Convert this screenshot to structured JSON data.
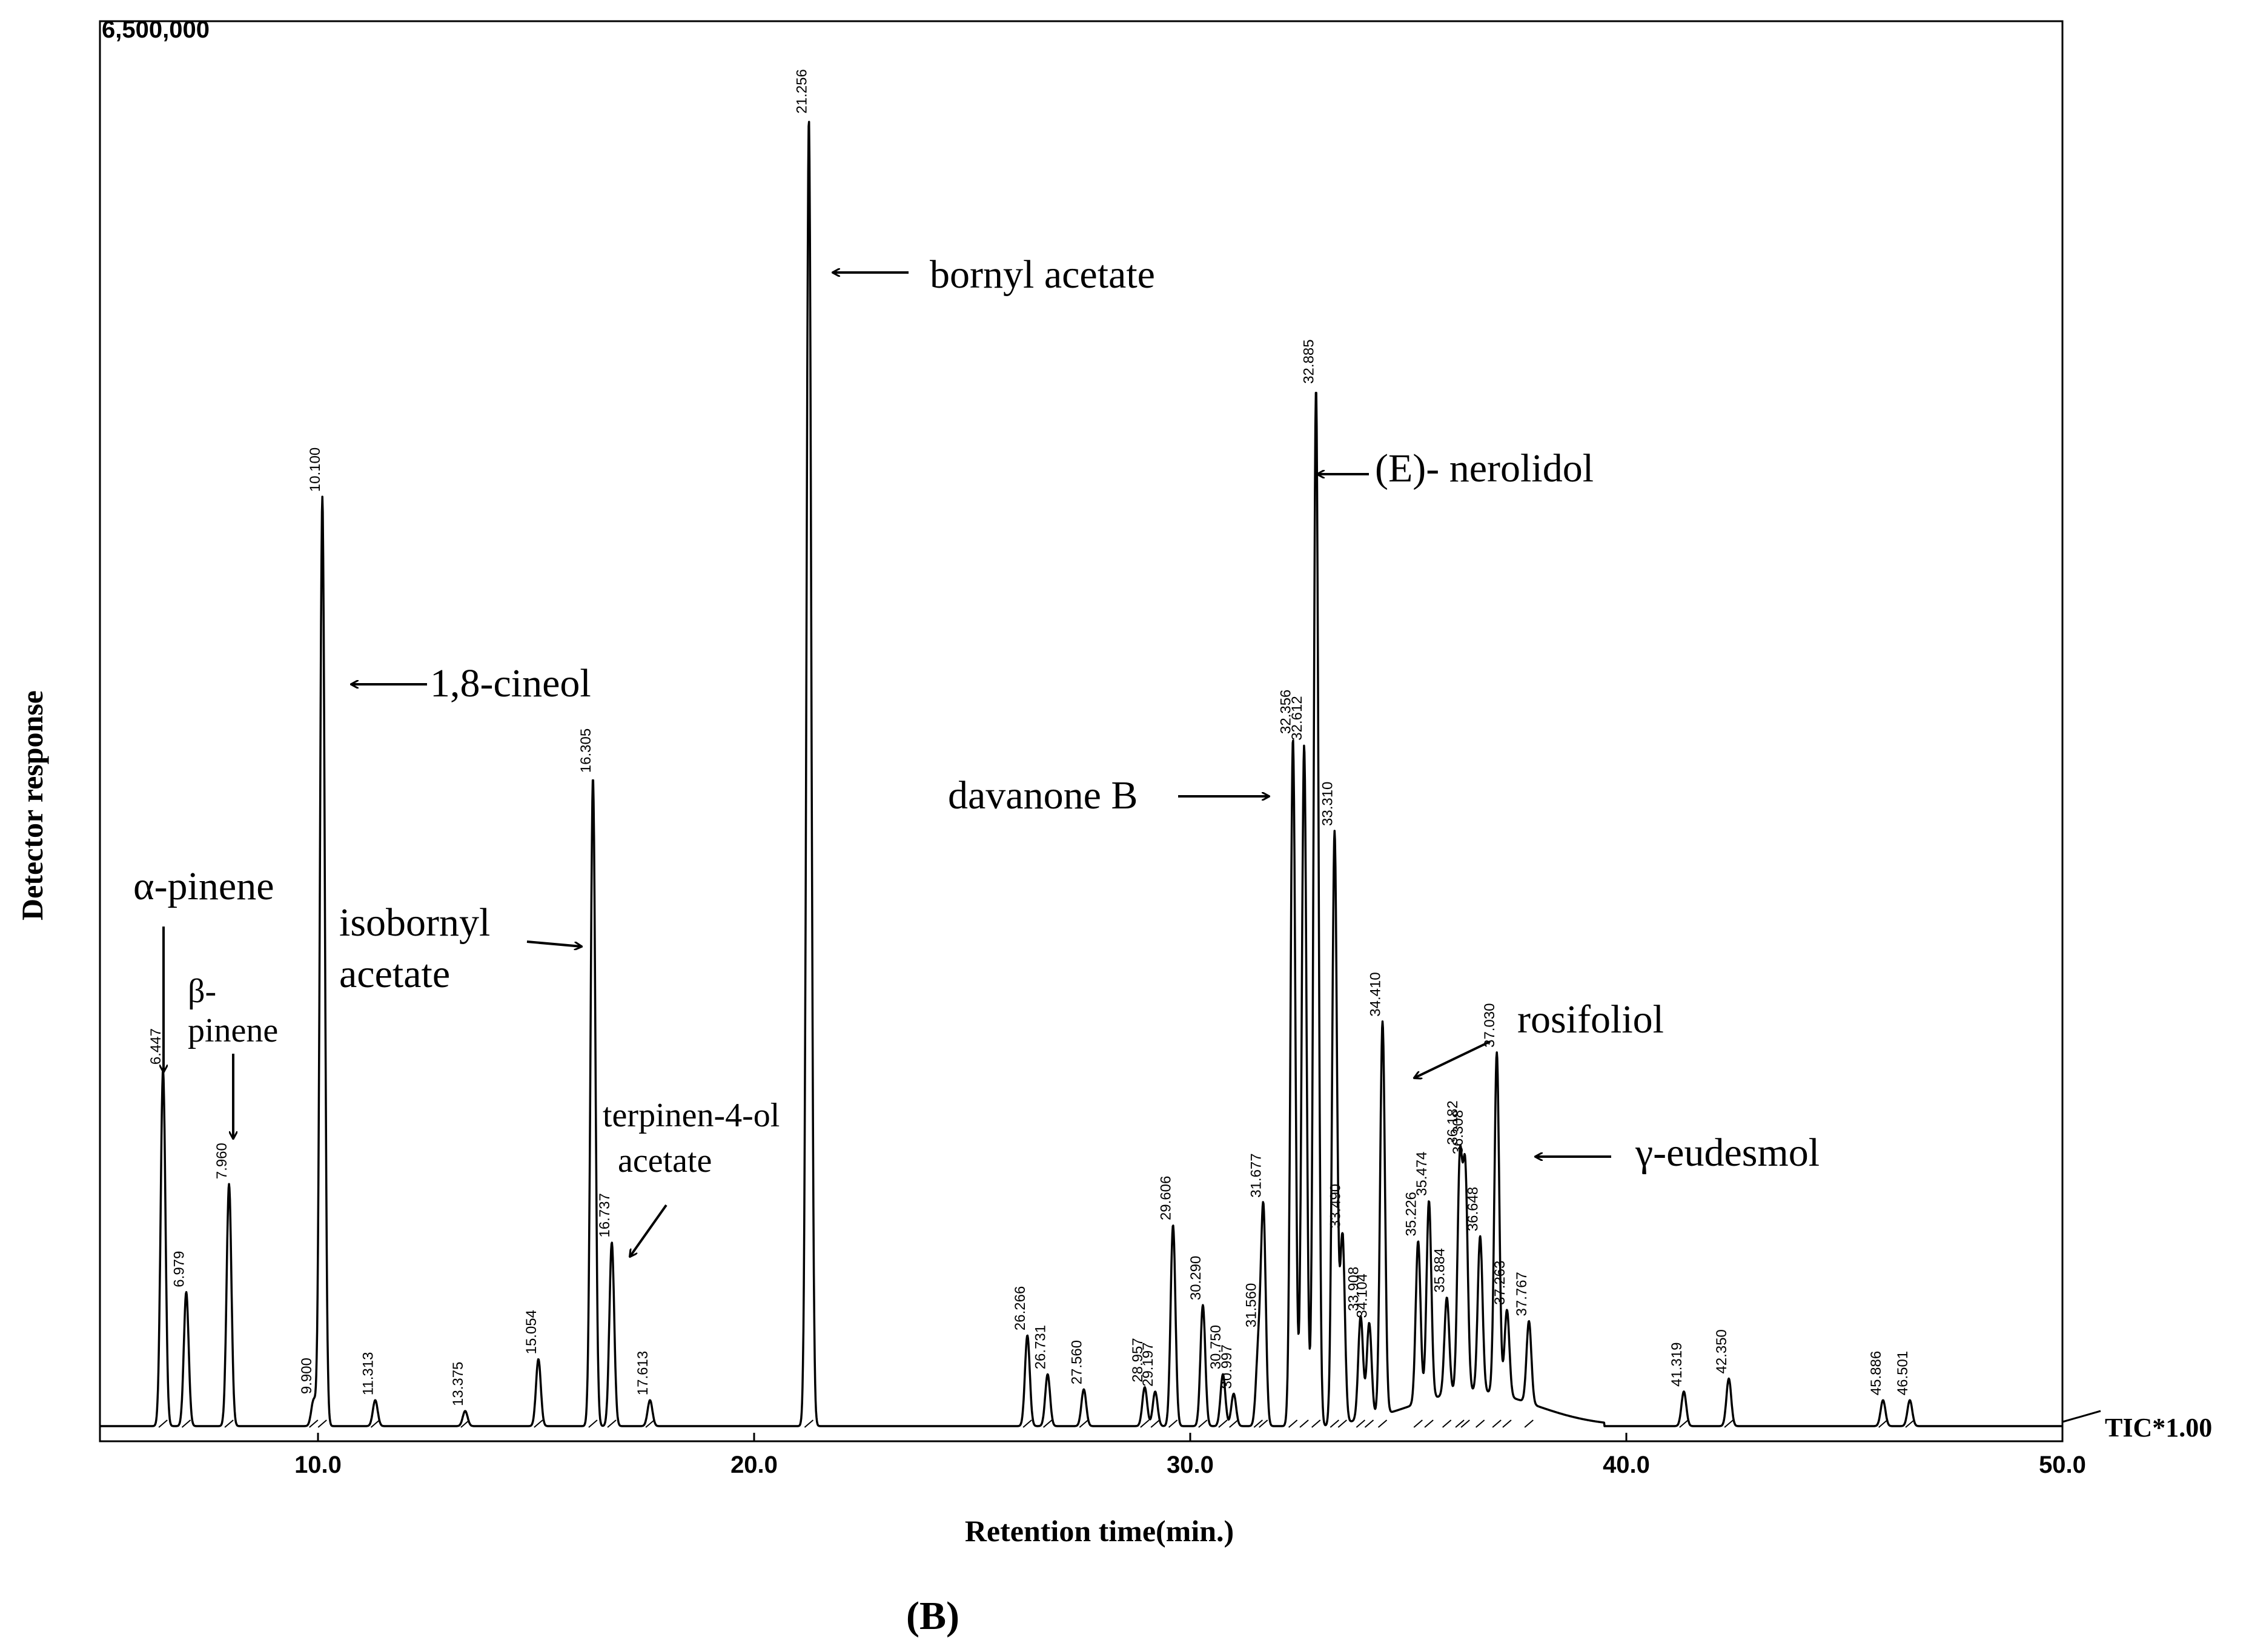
{
  "chart_data": {
    "type": "line",
    "title": "",
    "xlabel": "Retention time(min.)",
    "ylabel": "Detector response",
    "ymax_label": "6,500,000",
    "trace_label": "TIC*1.00",
    "panel_label": "(B)",
    "xlim": [
      5.0,
      50.0
    ],
    "ylim": [
      0,
      6500000
    ],
    "xticks": [
      "10.0",
      "20.0",
      "30.0",
      "40.0",
      "50.0"
    ],
    "grid": false,
    "peaks": [
      {
        "label": "6.447",
        "x": 6.447,
        "y": 1650000
      },
      {
        "label": "6.979",
        "x": 6.979,
        "y": 620000
      },
      {
        "label": "7.960",
        "x": 7.96,
        "y": 1120000
      },
      {
        "label": "9.900",
        "x": 9.9,
        "y": 120000
      },
      {
        "label": "10.100",
        "x": 10.1,
        "y": 4300000
      },
      {
        "label": "11.313",
        "x": 11.313,
        "y": 120000
      },
      {
        "label": "13.375",
        "x": 13.375,
        "y": 70000
      },
      {
        "label": "15.054",
        "x": 15.054,
        "y": 310000
      },
      {
        "label": "16.305",
        "x": 16.305,
        "y": 3000000
      },
      {
        "label": "16.737",
        "x": 16.737,
        "y": 850000
      },
      {
        "label": "17.613",
        "x": 17.613,
        "y": 120000
      },
      {
        "label": "21.256",
        "x": 21.256,
        "y": 6050000
      },
      {
        "label": "26.266",
        "x": 26.266,
        "y": 420000
      },
      {
        "label": "26.731",
        "x": 26.731,
        "y": 240000
      },
      {
        "label": "27.560",
        "x": 27.56,
        "y": 170000
      },
      {
        "label": "28.957",
        "x": 28.957,
        "y": 180000
      },
      {
        "label": "29.197",
        "x": 29.197,
        "y": 160000
      },
      {
        "label": "29.606",
        "x": 29.606,
        "y": 930000
      },
      {
        "label": "30.290",
        "x": 30.29,
        "y": 560000
      },
      {
        "label": "30.750",
        "x": 30.75,
        "y": 240000
      },
      {
        "label": "30.997",
        "x": 30.997,
        "y": 150000
      },
      {
        "label": "31.560",
        "x": 31.56,
        "y": 330000
      },
      {
        "label": "31.677",
        "x": 31.677,
        "y": 1000000
      },
      {
        "label": "32.356",
        "x": 32.356,
        "y": 3180000
      },
      {
        "label": "32.612",
        "x": 32.612,
        "y": 3150000
      },
      {
        "label": "32.885",
        "x": 32.885,
        "y": 4800000
      },
      {
        "label": "33.310",
        "x": 33.31,
        "y": 2750000
      },
      {
        "label": "33.490",
        "x": 33.49,
        "y": 880000
      },
      {
        "label": "33.908",
        "x": 33.908,
        "y": 480000
      },
      {
        "label": "34.104",
        "x": 34.104,
        "y": 440000
      },
      {
        "label": "34.410",
        "x": 34.41,
        "y": 1820000
      },
      {
        "label": "35.226",
        "x": 35.226,
        "y": 750000
      },
      {
        "label": "35.474",
        "x": 35.474,
        "y": 920000
      },
      {
        "label": "35.884",
        "x": 35.884,
        "y": 450000
      },
      {
        "label": "36.182",
        "x": 36.182,
        "y": 1050000
      },
      {
        "label": "36.308",
        "x": 36.308,
        "y": 1000000
      },
      {
        "label": "36.648",
        "x": 36.648,
        "y": 720000
      },
      {
        "label": "37.030",
        "x": 37.03,
        "y": 1580000
      },
      {
        "label": "37.263",
        "x": 37.263,
        "y": 400000
      },
      {
        "label": "37.767",
        "x": 37.767,
        "y": 380000
      },
      {
        "label": "41.319",
        "x": 41.319,
        "y": 160000
      },
      {
        "label": "42.350",
        "x": 42.35,
        "y": 220000
      },
      {
        "label": "45.886",
        "x": 45.886,
        "y": 120000
      },
      {
        "label": "46.501",
        "x": 46.501,
        "y": 120000
      }
    ],
    "annotations": [
      {
        "text": "α-pinene"
      },
      {
        "text": "β-"
      },
      {
        "text": "pinene"
      },
      {
        "text": "1,8-cineol"
      },
      {
        "text": "isobornyl"
      },
      {
        "text": "acetate"
      },
      {
        "text": "terpinen-4-ol"
      },
      {
        "text": "acetate"
      },
      {
        "text": "bornyl acetate"
      },
      {
        "text": "(E)- nerolidol"
      },
      {
        "text": "davanone B"
      },
      {
        "text": "rosifoliol"
      },
      {
        "text": "γ-eudesmol"
      }
    ]
  }
}
